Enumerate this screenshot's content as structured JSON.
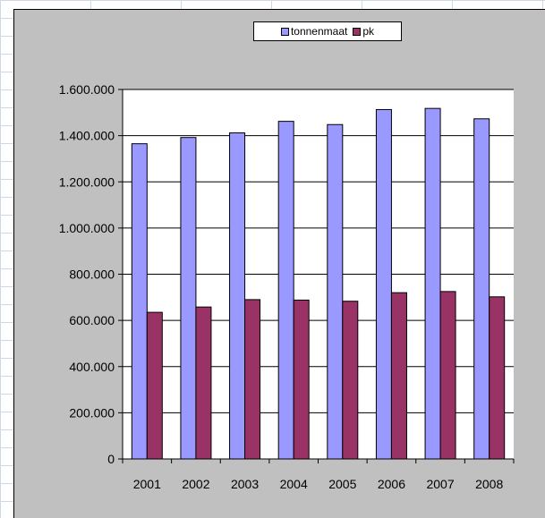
{
  "colors": {
    "tonnenmaat": "#9999ff",
    "pk": "#993366",
    "plot_area": "#ffffff",
    "chart_area": "#c0c0c0"
  },
  "chart_data": {
    "type": "bar",
    "title": "",
    "xlabel": "",
    "ylabel": "",
    "categories": [
      "2001",
      "2002",
      "2003",
      "2004",
      "2005",
      "2006",
      "2007",
      "2008"
    ],
    "series": [
      {
        "name": "tonnenmaat",
        "values": [
          1365000,
          1392000,
          1412000,
          1462000,
          1448000,
          1513000,
          1518000,
          1473000
        ]
      },
      {
        "name": "pk",
        "values": [
          635000,
          658000,
          690000,
          688000,
          683000,
          720000,
          725000,
          702000
        ]
      }
    ],
    "ylim": [
      0,
      1600000
    ],
    "yticks": [
      "0",
      "200.000",
      "400.000",
      "600.000",
      "800.000",
      "1.000.000",
      "1.200.000",
      "1.400.000",
      "1.600.000"
    ],
    "grid": true,
    "legend_position": "top"
  }
}
